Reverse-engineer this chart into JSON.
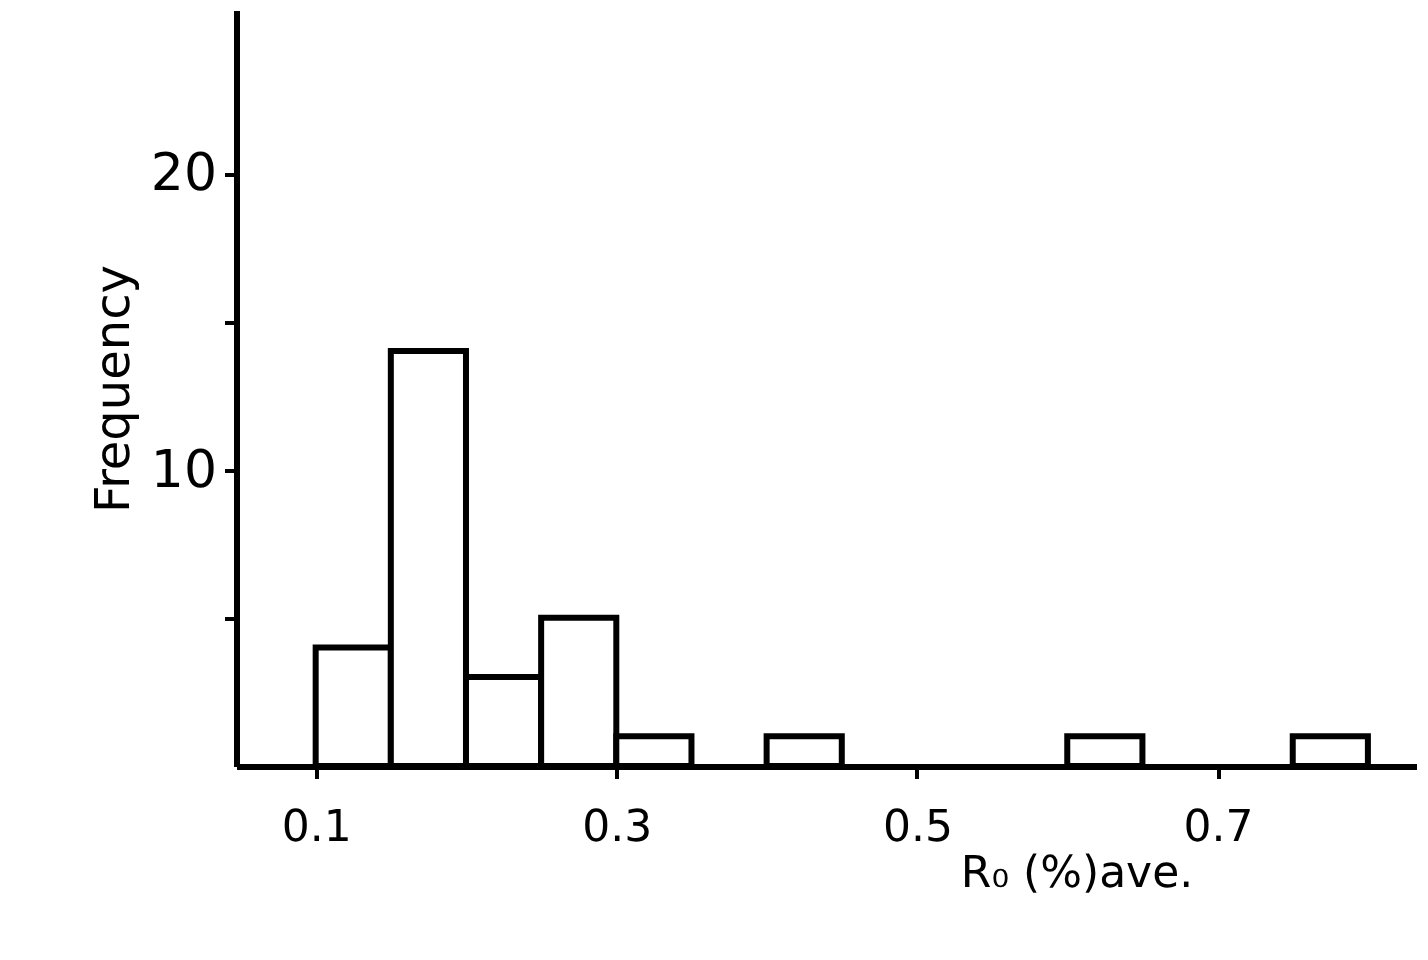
{
  "chart_data": {
    "type": "histogram",
    "xlabel": "R₀ (%)ave.",
    "ylabel": "Frequency",
    "bins": [
      0.1,
      0.15,
      0.2,
      0.25,
      0.3,
      0.35,
      0.4,
      0.45,
      0.5,
      0.55,
      0.6,
      0.65,
      0.7,
      0.75,
      0.8
    ],
    "values": [
      4,
      14,
      3,
      5,
      1,
      0,
      1,
      0,
      0,
      0,
      1,
      0,
      0,
      1
    ],
    "color": "#ffffff",
    "xlim": [
      0.047,
      0.832
    ],
    "xticks": [
      0.1,
      0.3,
      0.5,
      0.7
    ],
    "ylim": [
      0,
      25.5
    ],
    "yticks": [
      {
        "value": 5,
        "label": null
      },
      10,
      {
        "value": 15,
        "label": null
      },
      20
    ],
    "grid": false
  }
}
